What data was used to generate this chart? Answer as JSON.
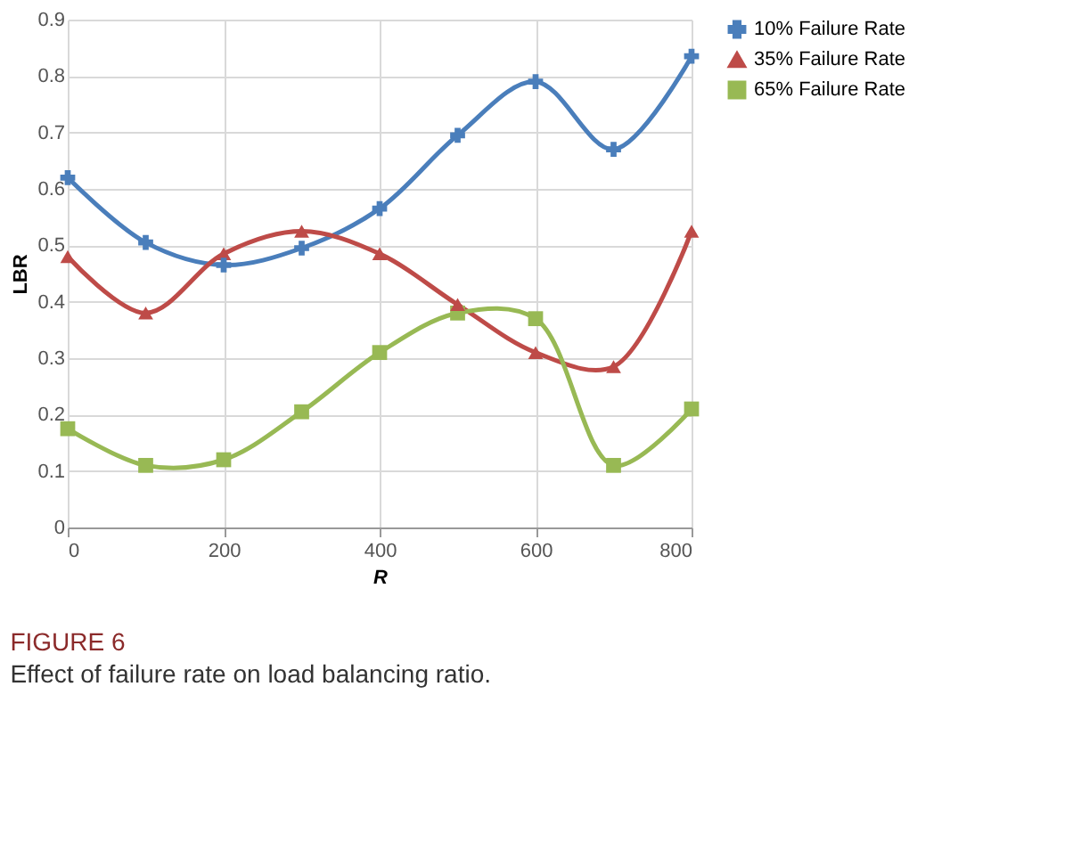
{
  "chart_data": {
    "type": "line",
    "title": "FIGURE 6",
    "subtitle": "Effect of failure rate on load balancing ratio.",
    "xlabel": "R",
    "ylabel": "LBR",
    "x": [
      0,
      100,
      200,
      300,
      400,
      500,
      600,
      700,
      800
    ],
    "series": [
      {
        "name": "10% Failure Rate",
        "color": "#4a7ebb",
        "marker": "cross",
        "values": [
          0.62,
          0.505,
          0.465,
          0.495,
          0.565,
          0.695,
          0.79,
          0.67,
          0.835
        ]
      },
      {
        "name": "35% Failure Rate",
        "color": "#be4b48",
        "marker": "triangle",
        "values": [
          0.48,
          0.38,
          0.485,
          0.525,
          0.485,
          0.395,
          0.31,
          0.285,
          0.525
        ]
      },
      {
        "name": "65% Failure Rate",
        "color": "#98b954",
        "marker": "square",
        "values": [
          0.175,
          0.11,
          0.12,
          0.205,
          0.31,
          0.38,
          0.37,
          0.11,
          0.21
        ]
      }
    ],
    "xlim": [
      0,
      800
    ],
    "xticks": [
      0,
      200,
      400,
      600,
      800
    ],
    "ylim": [
      0,
      0.9
    ],
    "yticks": [
      0,
      0.1,
      0.2,
      0.3,
      0.4,
      0.5,
      0.6,
      0.7,
      0.8,
      0.9
    ],
    "grid": true,
    "legend": "right",
    "line_style": "solid"
  }
}
